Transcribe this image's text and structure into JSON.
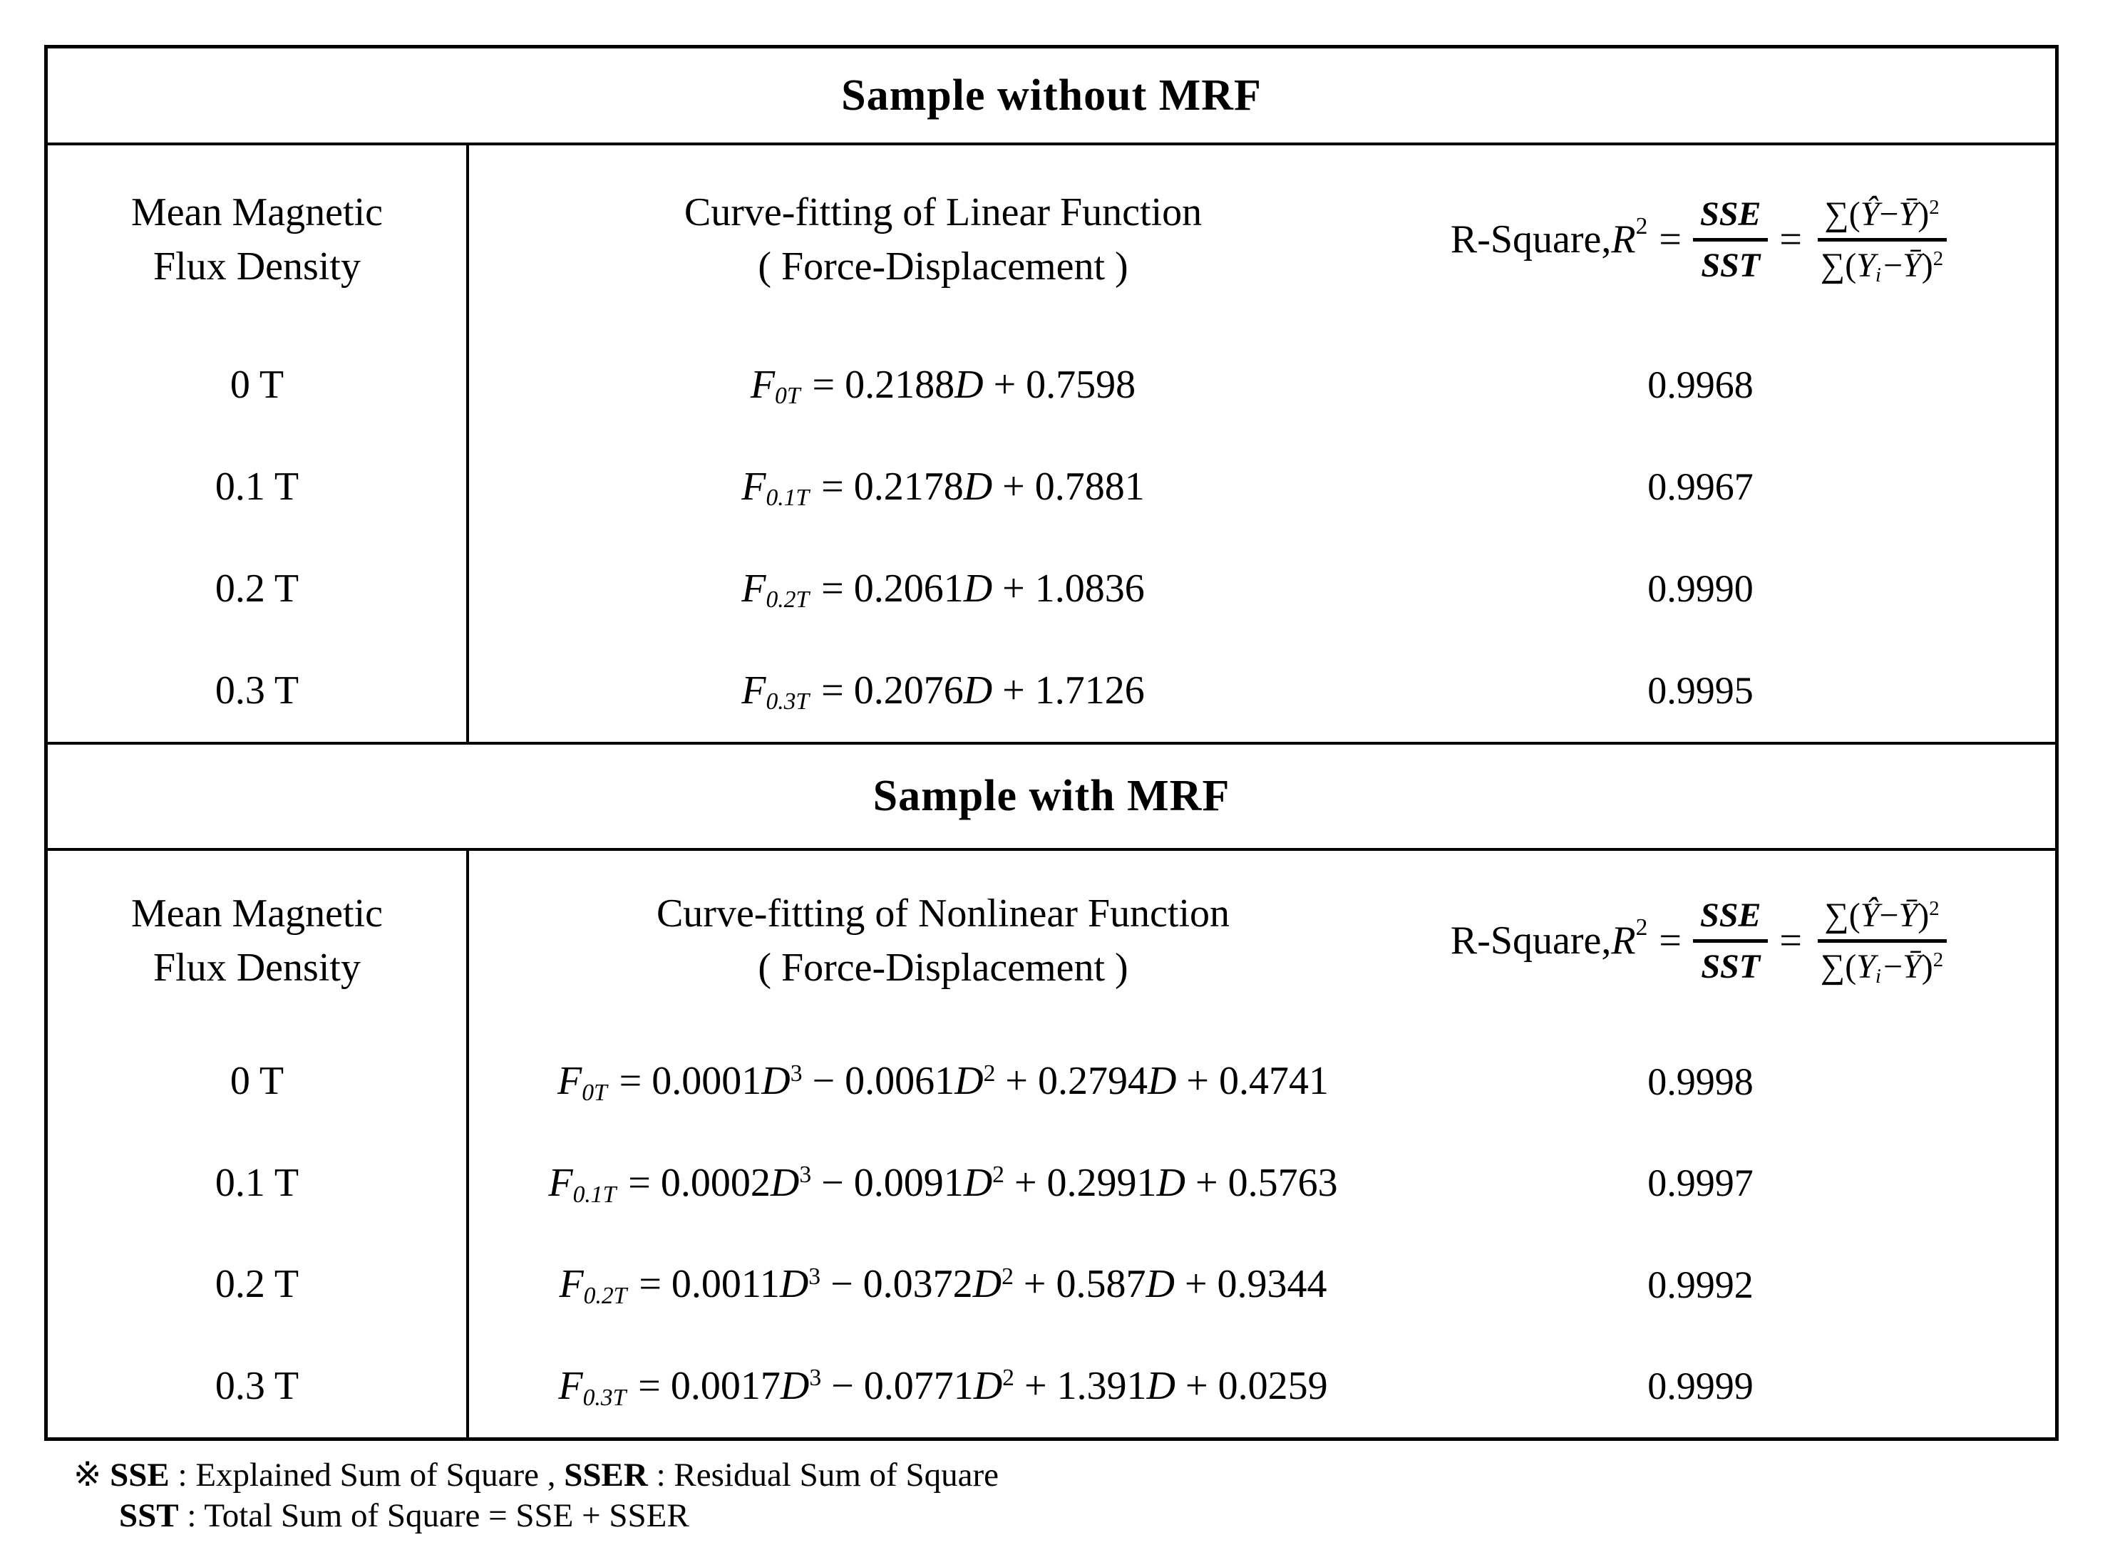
{
  "colors": {
    "text": "#000000",
    "background": "#ffffff",
    "border": "#000000"
  },
  "sections": [
    {
      "title": "Sample without MRF",
      "header": {
        "col1": [
          "Mean Magnetic",
          "Flux Density"
        ],
        "col2": [
          "Curve-fitting of Linear Function",
          "( Force-Displacement )"
        ]
      },
      "rows": [
        {
          "flux": "0 T",
          "r2": "0.9968",
          "eq": [
            {
              "t": "F",
              "s": "i"
            },
            {
              "t": "0T",
              "s": "sub"
            },
            {
              "t": " = 0.2188",
              "s": "n"
            },
            {
              "t": "D",
              "s": "i"
            },
            {
              "t": " + 0.7598",
              "s": "n"
            }
          ]
        },
        {
          "flux": "0.1 T",
          "r2": "0.9967",
          "eq": [
            {
              "t": "F",
              "s": "i"
            },
            {
              "t": "0.1T",
              "s": "sub"
            },
            {
              "t": " = 0.2178",
              "s": "n"
            },
            {
              "t": "D",
              "s": "i"
            },
            {
              "t": " + 0.7881",
              "s": "n"
            }
          ]
        },
        {
          "flux": "0.2 T",
          "r2": "0.9990",
          "eq": [
            {
              "t": "F",
              "s": "i"
            },
            {
              "t": "0.2T",
              "s": "sub"
            },
            {
              "t": " = 0.2061",
              "s": "n"
            },
            {
              "t": "D",
              "s": "i"
            },
            {
              "t": " + 1.0836",
              "s": "n"
            }
          ]
        },
        {
          "flux": "0.3 T",
          "r2": "0.9995",
          "eq": [
            {
              "t": "F",
              "s": "i"
            },
            {
              "t": "0.3T",
              "s": "sub"
            },
            {
              "t": " = 0.2076",
              "s": "n"
            },
            {
              "t": "D",
              "s": "i"
            },
            {
              "t": " + 1.7126",
              "s": "n"
            }
          ]
        }
      ]
    },
    {
      "title": "Sample with MRF",
      "header": {
        "col1": [
          "Mean Magnetic",
          "Flux Density"
        ],
        "col2": [
          "Curve-fitting of Nonlinear Function",
          "( Force-Displacement )"
        ]
      },
      "rows": [
        {
          "flux": "0 T",
          "r2": "0.9998",
          "eq": [
            {
              "t": "F",
              "s": "i"
            },
            {
              "t": "0T",
              "s": "sub"
            },
            {
              "t": " = 0.0001",
              "s": "n"
            },
            {
              "t": "D",
              "s": "i"
            },
            {
              "t": "3",
              "s": "sup"
            },
            {
              "t": " − 0.0061",
              "s": "n"
            },
            {
              "t": "D",
              "s": "i"
            },
            {
              "t": "2",
              "s": "sup"
            },
            {
              "t": " + 0.2794",
              "s": "n"
            },
            {
              "t": "D",
              "s": "i"
            },
            {
              "t": " + 0.4741",
              "s": "n"
            }
          ]
        },
        {
          "flux": "0.1 T",
          "r2": "0.9997",
          "eq": [
            {
              "t": "F",
              "s": "i"
            },
            {
              "t": "0.1T",
              "s": "sub"
            },
            {
              "t": " = 0.0002",
              "s": "n"
            },
            {
              "t": "D",
              "s": "i"
            },
            {
              "t": "3",
              "s": "sup"
            },
            {
              "t": " − 0.0091",
              "s": "n"
            },
            {
              "t": "D",
              "s": "i"
            },
            {
              "t": "2",
              "s": "sup"
            },
            {
              "t": " + 0.2991",
              "s": "n"
            },
            {
              "t": "D",
              "s": "i"
            },
            {
              "t": " + 0.5763",
              "s": "n"
            }
          ]
        },
        {
          "flux": "0.2 T",
          "r2": "0.9992",
          "eq": [
            {
              "t": "F",
              "s": "i"
            },
            {
              "t": "0.2T",
              "s": "sub"
            },
            {
              "t": " = 0.0011",
              "s": "n"
            },
            {
              "t": "D",
              "s": "i"
            },
            {
              "t": "3",
              "s": "sup"
            },
            {
              "t": " − 0.0372",
              "s": "n"
            },
            {
              "t": "D",
              "s": "i"
            },
            {
              "t": "2",
              "s": "sup"
            },
            {
              "t": " + 0.587",
              "s": "n"
            },
            {
              "t": "D",
              "s": "i"
            },
            {
              "t": " + 0.9344",
              "s": "n"
            }
          ]
        },
        {
          "flux": "0.3 T",
          "r2": "0.9999",
          "eq": [
            {
              "t": "F",
              "s": "i"
            },
            {
              "t": "0.3T",
              "s": "sub"
            },
            {
              "t": " = 0.0017",
              "s": "n"
            },
            {
              "t": "D",
              "s": "i"
            },
            {
              "t": "3",
              "s": "sup"
            },
            {
              "t": " − 0.0771",
              "s": "n"
            },
            {
              "t": "D",
              "s": "i"
            },
            {
              "t": "2",
              "s": "sup"
            },
            {
              "t": " + 1.391",
              "s": "n"
            },
            {
              "t": "D",
              "s": "i"
            },
            {
              "t": " + 0.0259",
              "s": "n"
            }
          ]
        }
      ]
    }
  ],
  "r2_formula": {
    "prefix": "R-Square, ",
    "var": "R",
    "var_exp": "2",
    "equals": "=",
    "frac1_num": "SSE",
    "frac1_den": "SST",
    "frac2_num": [
      {
        "t": "∑(",
        "s": "n"
      },
      {
        "t": "Ŷ",
        "s": "i"
      },
      {
        "t": "−",
        "s": "n"
      },
      {
        "t": "Ȳ",
        "s": "i"
      },
      {
        "t": ")",
        "s": "n"
      },
      {
        "t": "2",
        "s": "sup"
      }
    ],
    "frac2_den": [
      {
        "t": "∑(",
        "s": "n"
      },
      {
        "t": "Y",
        "s": "i"
      },
      {
        "t": "i",
        "s": "sub"
      },
      {
        "t": "−",
        "s": "n"
      },
      {
        "t": "Ȳ",
        "s": "i"
      },
      {
        "t": ")",
        "s": "n"
      },
      {
        "t": "2",
        "s": "sup"
      }
    ]
  },
  "footnote": {
    "line1": [
      {
        "t": "※ ",
        "s": "n"
      },
      {
        "t": "SSE",
        "s": "b"
      },
      {
        "t": " : Explained Sum of Square , ",
        "s": "n"
      },
      {
        "t": "SSER",
        "s": "b"
      },
      {
        "t": " : Residual Sum of Square",
        "s": "n"
      }
    ],
    "line2": [
      {
        "t": "SST",
        "s": "b"
      },
      {
        "t": " : Total Sum of Square = SSE + SSER",
        "s": "n"
      }
    ]
  }
}
